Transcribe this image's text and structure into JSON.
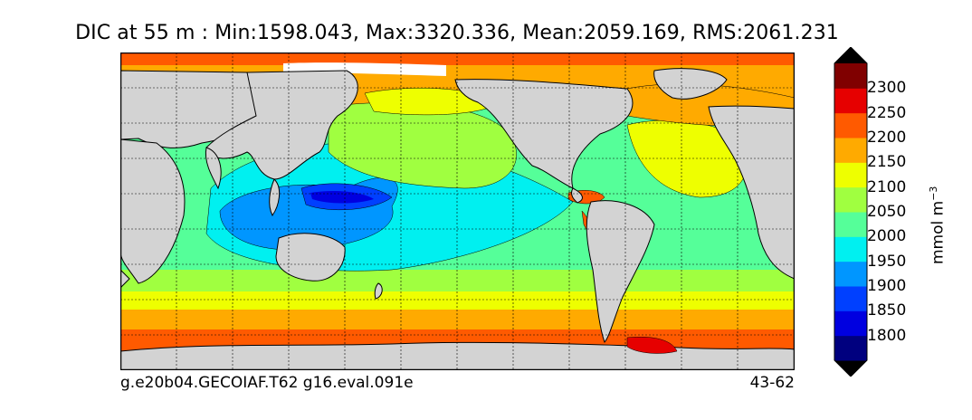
{
  "title": "DIC at 55 m : Min:1598.043, Max:3320.336, Mean:2059.169, RMS:2061.231",
  "footer": {
    "case_name": "g.e20b04.GECOIAF.T62 g16.eval.091e",
    "years": "43-62"
  },
  "colorbar": {
    "unit_label": "mmol m",
    "unit_exponent": "−3",
    "levels": [
      "1800",
      "1850",
      "1900",
      "1950",
      "2000",
      "2050",
      "2100",
      "2150",
      "2200",
      "2250",
      "2300"
    ],
    "colors": [
      "#00007f",
      "#0000e0",
      "#0040ff",
      "#0096ff",
      "#00f0f0",
      "#55ff99",
      "#a0ff40",
      "#eeff00",
      "#ffaa00",
      "#ff5a00",
      "#e60000",
      "#800000"
    ],
    "extend": "both"
  },
  "map": {
    "projection": "cylindrical",
    "land_color": "#d3d3d3",
    "gridlines": "dashed"
  }
}
